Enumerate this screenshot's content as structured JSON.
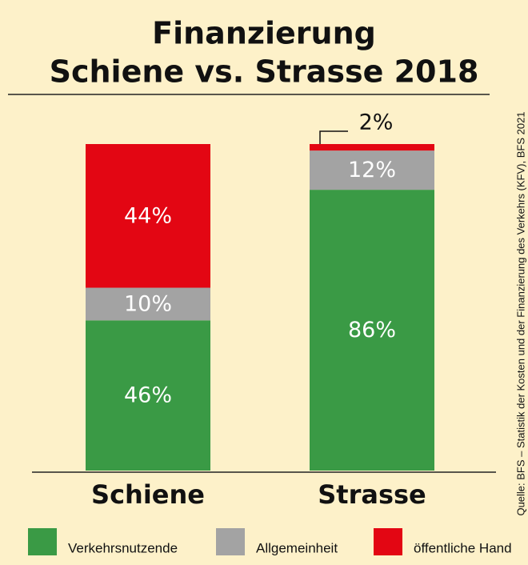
{
  "chart_data": {
    "type": "stacked_bar",
    "title": "Finanzierung",
    "subtitle": "Schiene vs. Strasse 2018",
    "source": "Quelle: BFS – Statistik der Kosten und der Finanzierung des Verkehrs (KFV), BFS 2021",
    "categories": [
      "Schiene",
      "Strasse"
    ],
    "ylim": [
      0,
      100
    ],
    "series": [
      {
        "name": "Verkehrsnutzende",
        "color": "#3a9a45",
        "values": [
          46,
          86
        ],
        "value_labels": [
          "46%",
          "86%"
        ]
      },
      {
        "name": "Allgemeinheit",
        "color": "#a3a3a3",
        "values": [
          10,
          12
        ],
        "value_labels": [
          "10%",
          "12%"
        ]
      },
      {
        "name": "öffentliche Hand",
        "color": "#e30613",
        "values": [
          44,
          2
        ],
        "value_labels": [
          "44%",
          "2%"
        ]
      }
    ]
  }
}
